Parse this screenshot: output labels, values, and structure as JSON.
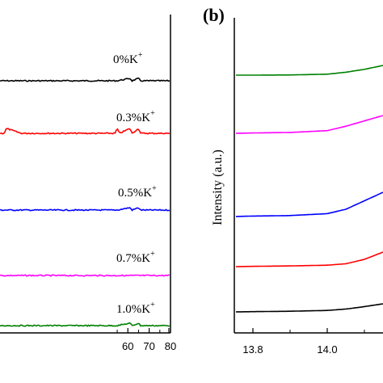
{
  "panel_b_label": "(b)",
  "chart_data": [
    {
      "type": "line",
      "panel": "a",
      "xlim": [
        0,
        80
      ],
      "x_ticks": [
        "60",
        "70",
        "80"
      ],
      "series": [
        {
          "name": "0%K",
          "color": "#000000",
          "x": [
            0,
            20,
            40,
            55,
            61,
            62,
            65,
            66,
            70,
            75,
            80
          ],
          "y": [
            0,
            0,
            0,
            0,
            1,
            0,
            1,
            0,
            0,
            0,
            0
          ]
        },
        {
          "name": "0.3%K",
          "color": "#ff0000",
          "x": [
            0,
            2,
            3,
            10,
            20,
            30,
            40,
            48,
            54,
            55,
            56,
            61,
            62,
            65,
            66,
            70,
            75,
            80
          ],
          "y": [
            0,
            0,
            2,
            0,
            0,
            0,
            0,
            0,
            0,
            2,
            0,
            2,
            0,
            2,
            0,
            0,
            0,
            0
          ]
        },
        {
          "name": "0.5%K",
          "color": "#0000ff",
          "x": [
            0,
            20,
            40,
            55,
            61,
            62,
            65,
            66,
            70,
            75,
            80
          ],
          "y": [
            0,
            0,
            0,
            0,
            1,
            0,
            1,
            0,
            0,
            0,
            0
          ]
        },
        {
          "name": "0.7%K",
          "color": "#ff00ff",
          "x": [
            0,
            20,
            40,
            55,
            65,
            70,
            80
          ],
          "y": [
            0,
            0,
            0,
            0,
            0,
            0,
            0
          ]
        },
        {
          "name": "1.0%K",
          "color": "#008000",
          "x": [
            0,
            20,
            40,
            55,
            61,
            62,
            65,
            66,
            70,
            75,
            80
          ],
          "y": [
            0,
            0,
            0,
            0,
            1,
            0,
            1,
            0,
            0,
            0,
            0
          ]
        }
      ],
      "labels": [
        "0%K",
        "0.3%K",
        "0.5%K",
        "0.7%K",
        "1.0%K"
      ],
      "superscript": "+"
    },
    {
      "type": "line",
      "panel": "b",
      "ylabel": "Intensity (a.u.)",
      "xlim": [
        13.75,
        14.15
      ],
      "x_ticks": [
        "13.8",
        "14.0"
      ],
      "series": [
        {
          "color": "#008000",
          "x": [
            13.75,
            13.8,
            13.9,
            14.0,
            14.05,
            14.1,
            14.15
          ],
          "y": [
            0,
            0,
            0.02,
            0.1,
            0.3,
            0.6,
            1.0
          ]
        },
        {
          "color": "#ff00ff",
          "x": [
            13.75,
            13.8,
            13.9,
            14.0,
            14.05,
            14.1,
            14.15
          ],
          "y": [
            0,
            0.02,
            0.05,
            0.15,
            0.4,
            0.7,
            1.0
          ]
        },
        {
          "color": "#0000ff",
          "x": [
            13.75,
            13.8,
            13.9,
            14.0,
            14.05,
            14.1,
            14.15
          ],
          "y": [
            0,
            0.02,
            0.04,
            0.12,
            0.3,
            0.65,
            1.0
          ]
        },
        {
          "color": "#ff0000",
          "x": [
            13.75,
            13.8,
            13.9,
            14.0,
            14.05,
            14.1,
            14.15
          ],
          "y": [
            0,
            0.02,
            0.05,
            0.1,
            0.2,
            0.5,
            1.0
          ]
        },
        {
          "color": "#000000",
          "x": [
            13.75,
            13.8,
            13.9,
            14.0,
            14.05,
            14.1,
            14.15
          ],
          "y": [
            0,
            0.03,
            0.08,
            0.18,
            0.35,
            0.65,
            1.0
          ]
        }
      ]
    }
  ]
}
